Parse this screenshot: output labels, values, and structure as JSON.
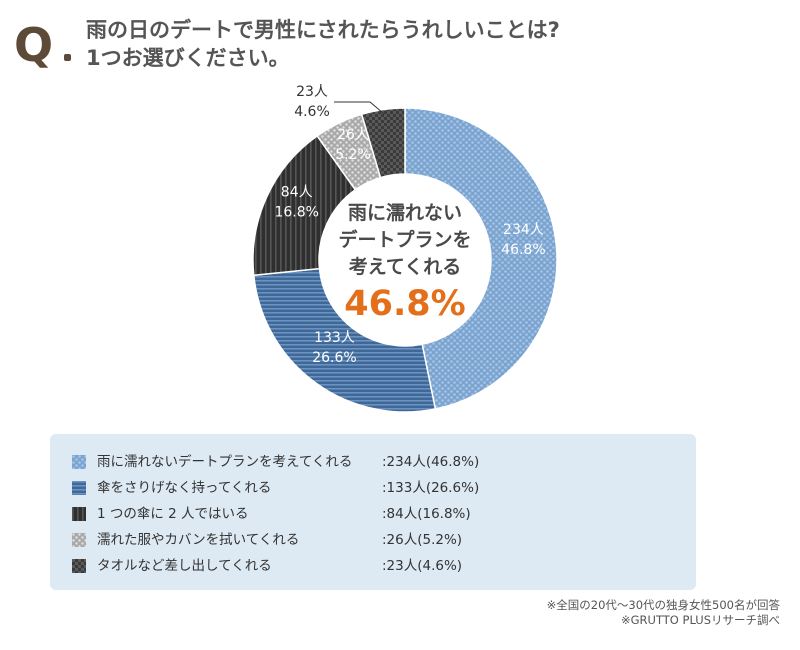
{
  "header": {
    "q_mark": "Q",
    "question_line1": "雨の日のデートで男性にされたらうれしいことは?",
    "question_line2": "1つお選びください。"
  },
  "chart_data": {
    "type": "pie",
    "donut": true,
    "unit": "人",
    "categories": [
      "雨に濡れないデートプランを考えてくれる",
      "傘をさりげなく持ってくれる",
      "1 つの傘に 2 人ではいる",
      "濡れた服やカバンを拭いてくれる",
      "タオルなど差し出してくれる"
    ],
    "values": [
      234,
      133,
      84,
      26,
      23
    ],
    "percents": [
      46.8,
      26.6,
      16.8,
      5.2,
      4.6
    ],
    "slice_labels_count": [
      "234人",
      "133人",
      "84人",
      "26人",
      "23人"
    ],
    "slice_labels_pct": [
      "46.8%",
      "26.6%",
      "16.8%",
      "5.2%",
      "4.6%"
    ],
    "center_text": [
      "雨に濡れない",
      "デートプラン",
      "考えてくれる"
    ],
    "center_text_suffix": "を",
    "center_value": "46.8%",
    "colors": [
      "#8fb4dc",
      "#4d76a6",
      "#3d3d3d",
      "#bdbdbd",
      "#4a4a4a"
    ],
    "legend_placement": "bottom"
  },
  "legend": {
    "items": [
      {
        "label": "雨に濡れないデートプランを考えてくれる",
        "value": ":234人(46.8%)"
      },
      {
        "label": "傘をさりげなく持ってくれる",
        "value": ":133人(26.6%)"
      },
      {
        "label": "1 つの傘に 2 人ではいる",
        "value": ":84人(16.8%)"
      },
      {
        "label": "濡れた服やカバンを拭いてくれる",
        "value": ":26人(5.2%)"
      },
      {
        "label": "タオルなど差し出してくれる",
        "value": ":23人(4.6%)"
      }
    ]
  },
  "source": {
    "line1": "※全国の20代〜30代の独身女性500名が回答",
    "line2": "※GRUTTO PLUSリサーチ調べ"
  }
}
